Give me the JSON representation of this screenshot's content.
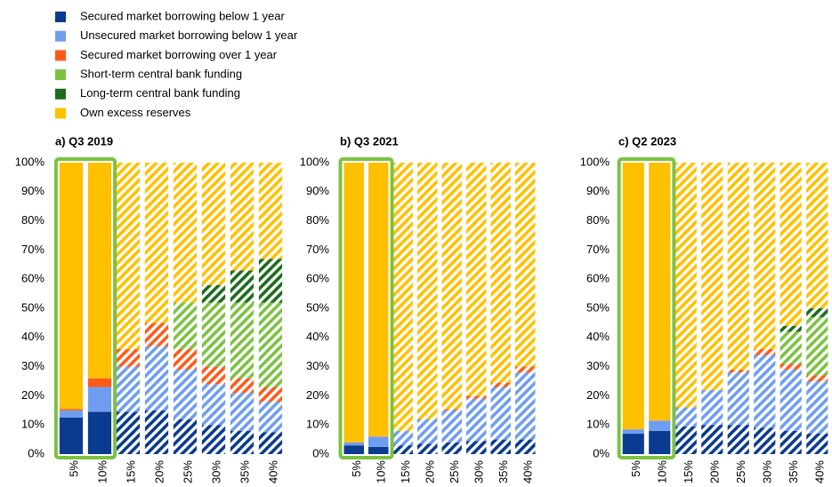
{
  "legend": [
    {
      "name": "Secured market borrowing below 1 year",
      "color": "#0b3b8f"
    },
    {
      "name": "Unsecured market borrowing below 1 year",
      "color": "#6f9ef0"
    },
    {
      "name": "Secured market borrowing over 1 year",
      "color": "#ff5a1a"
    },
    {
      "name": "Short-term central bank funding",
      "color": "#7cc242"
    },
    {
      "name": "Long-term central bank funding",
      "color": "#1d6b1d"
    },
    {
      "name": "Own excess reserves",
      "color": "#ffc000"
    }
  ],
  "chart_data": [
    {
      "type": "stacked_bar",
      "title": "a) Q3 2019",
      "categories": [
        "5%",
        "10%",
        "15%",
        "20%",
        "25%",
        "30%",
        "35%",
        "40%"
      ],
      "hatched": [
        false,
        false,
        true,
        true,
        true,
        true,
        true,
        true
      ],
      "series": [
        {
          "values": [
            12.5,
            14.5,
            14.5,
            15,
            12,
            10,
            8,
            7.5
          ]
        },
        {
          "values": [
            2.5,
            8.5,
            15.5,
            22,
            17,
            14,
            13,
            10.5
          ]
        },
        {
          "values": [
            0.5,
            3,
            6,
            8,
            7,
            6,
            5,
            5
          ]
        },
        {
          "values": [
            0,
            0,
            0,
            0,
            16,
            22,
            26,
            29
          ]
        },
        {
          "values": [
            0,
            0,
            0,
            0,
            0,
            6,
            11,
            15
          ]
        },
        {
          "values": [
            84.5,
            74,
            64,
            55,
            48,
            42,
            37,
            33
          ]
        }
      ],
      "ylim": [
        0,
        100
      ],
      "yticks": [
        {
          "value": 0,
          "label": "0%"
        },
        {
          "value": 10,
          "label": "10%"
        },
        {
          "value": 20,
          "label": "20%"
        },
        {
          "value": 30,
          "label": "30%"
        },
        {
          "value": 40,
          "label": "40%"
        },
        {
          "value": 50,
          "label": "50%"
        },
        {
          "value": 60,
          "label": "60%"
        },
        {
          "value": 70,
          "label": "70%"
        },
        {
          "value": 80,
          "label": "80%"
        },
        {
          "value": 90,
          "label": "90%"
        },
        {
          "value": 100,
          "label": "100%"
        }
      ]
    },
    {
      "type": "stacked_bar",
      "title": "b) Q3 2021",
      "categories": [
        "5%",
        "10%",
        "15%",
        "20%",
        "25%",
        "30%",
        "35%",
        "40%"
      ],
      "hatched": [
        false,
        false,
        true,
        true,
        true,
        true,
        true,
        true
      ],
      "series": [
        {
          "values": [
            3,
            2.5,
            3,
            3.5,
            4,
            4.5,
            5,
            5
          ]
        },
        {
          "values": [
            1,
            3.5,
            5,
            8.5,
            11,
            14.5,
            18,
            23
          ]
        },
        {
          "values": [
            0,
            0,
            0,
            0,
            0.5,
            1,
            1.5,
            2
          ]
        },
        {
          "values": [
            0,
            0,
            0,
            0,
            0,
            0,
            0,
            0
          ]
        },
        {
          "values": [
            0,
            0,
            0,
            0,
            0,
            0,
            0,
            0
          ]
        },
        {
          "values": [
            96,
            94,
            92,
            88,
            84.5,
            80,
            75.5,
            70
          ]
        }
      ],
      "ylim": [
        0,
        100
      ],
      "yticks": [
        {
          "value": 0,
          "label": "0%"
        },
        {
          "value": 10,
          "label": "10%"
        },
        {
          "value": 20,
          "label": "20%"
        },
        {
          "value": 30,
          "label": "30%"
        },
        {
          "value": 40,
          "label": "40%"
        },
        {
          "value": 50,
          "label": "50%"
        },
        {
          "value": 60,
          "label": "60%"
        },
        {
          "value": 70,
          "label": "70%"
        },
        {
          "value": 80,
          "label": "80%"
        },
        {
          "value": 90,
          "label": "90%"
        },
        {
          "value": 100,
          "label": "100%"
        }
      ]
    },
    {
      "type": "stacked_bar",
      "title": "c) Q2 2023",
      "categories": [
        "5%",
        "10%",
        "15%",
        "20%",
        "25%",
        "30%",
        "35%",
        "40%"
      ],
      "hatched": [
        false,
        false,
        true,
        true,
        true,
        true,
        true,
        true
      ],
      "series": [
        {
          "values": [
            7,
            8,
            9.5,
            10,
            10,
            9,
            8,
            7
          ]
        },
        {
          "values": [
            1.5,
            3.5,
            6.5,
            12,
            18,
            25,
            21,
            18
          ]
        },
        {
          "values": [
            0,
            0,
            0,
            0,
            1,
            2,
            2,
            2
          ]
        },
        {
          "values": [
            0,
            0,
            0,
            0,
            0,
            0,
            11,
            20
          ]
        },
        {
          "values": [
            0,
            0,
            0,
            0,
            0,
            0,
            2,
            3
          ]
        },
        {
          "values": [
            91.5,
            88.5,
            84,
            78,
            71,
            64,
            56,
            50
          ]
        }
      ],
      "ylim": [
        0,
        100
      ],
      "yticks": [
        {
          "value": 0,
          "label": "0%"
        },
        {
          "value": 10,
          "label": "10%"
        },
        {
          "value": 20,
          "label": "20%"
        },
        {
          "value": 30,
          "label": "30%"
        },
        {
          "value": 40,
          "label": "40%"
        },
        {
          "value": 50,
          "label": "50%"
        },
        {
          "value": 60,
          "label": "60%"
        },
        {
          "value": 70,
          "label": "70%"
        },
        {
          "value": 80,
          "label": "80%"
        },
        {
          "value": 90,
          "label": "90%"
        },
        {
          "value": 100,
          "label": "100%"
        }
      ]
    }
  ]
}
